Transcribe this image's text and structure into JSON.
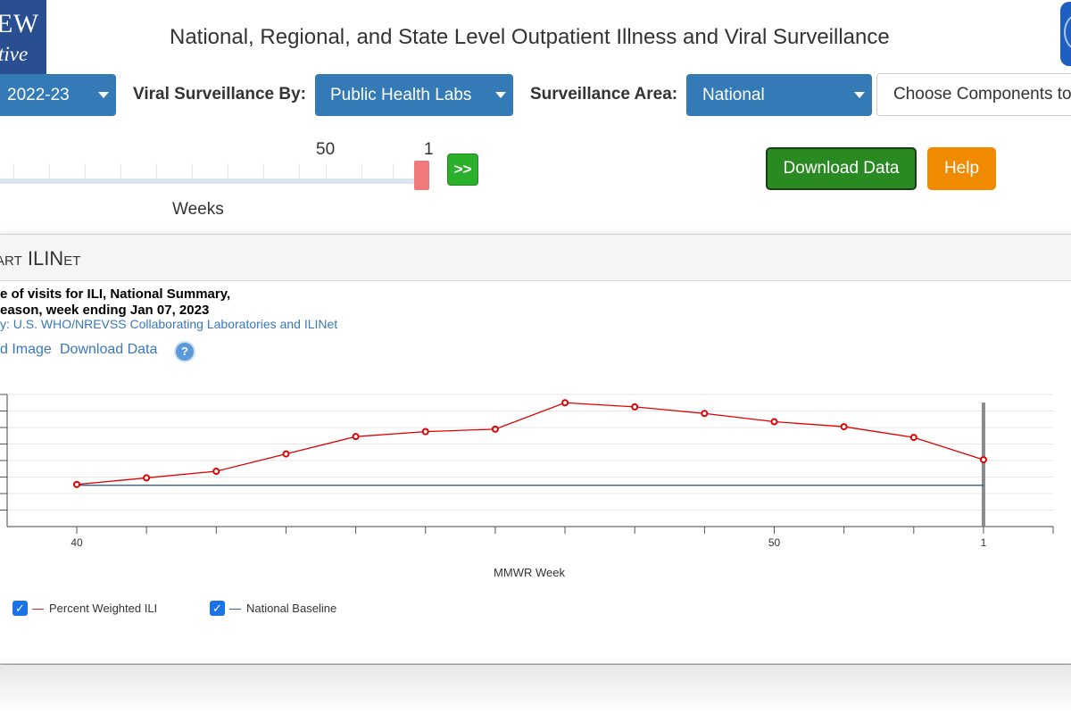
{
  "header": {
    "logo_line1": "EW",
    "logo_line2": "tive",
    "title": "National, Regional, and State Level Outpatient Illness and Viral Surveillance"
  },
  "controls": {
    "season_value": "2022-23",
    "viral_label": "Viral Surveillance By:",
    "viral_value": "Public Health Labs",
    "area_label": "Surveillance Area:",
    "area_value": "National",
    "components_placeholder": "Choose Components to"
  },
  "slider": {
    "label_left": "50",
    "label_right": "1",
    "go_label": ">>",
    "weeks_label": "Weeks"
  },
  "actions": {
    "download_label": "Download Data",
    "help_label": "Help"
  },
  "panel": {
    "title": "art ILINet",
    "chart_title_line1": "e of visits for ILI, National Summary,",
    "chart_title_line2": "eason, week ending Jan 07, 2023",
    "source": "y: U.S. WHO/NREVSS Collaborating Laboratories and ILINet",
    "download_image": "d Image",
    "download_data": "Download Data",
    "help_icon": "?"
  },
  "chart_data": {
    "type": "line",
    "x": [
      "40",
      "41",
      "42",
      "43",
      "44",
      "45",
      "46",
      "47",
      "48",
      "49",
      "50",
      "51",
      "52",
      "1"
    ],
    "x_tick_labels_shown": [
      "40",
      "50",
      "1"
    ],
    "xlabel": "MMWR Week",
    "ylim": [
      0,
      8
    ],
    "series": [
      {
        "name": "Percent Weighted ILI",
        "color": "#e00000",
        "values": [
          2.55,
          2.95,
          3.35,
          4.4,
          5.45,
          5.75,
          5.9,
          7.5,
          7.25,
          6.85,
          6.35,
          6.05,
          5.4,
          4.05
        ]
      },
      {
        "name": "National Baseline",
        "color": "#1f4e8c",
        "values": [
          2.5,
          2.5,
          2.5,
          2.5,
          2.5,
          2.5,
          2.5,
          2.5,
          2.5,
          2.5,
          2.5,
          2.5,
          2.5,
          2.5
        ]
      }
    ],
    "grid": true,
    "legend_placement": "bottom-left"
  }
}
